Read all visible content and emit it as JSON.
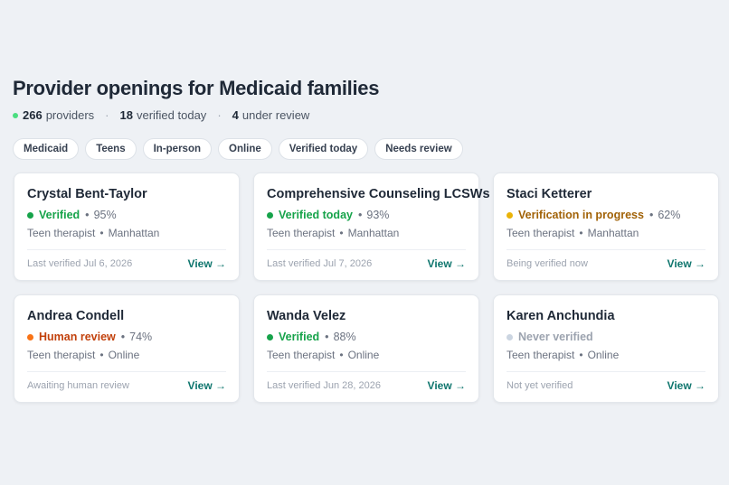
{
  "header": {
    "title": "Provider openings for Medicaid families",
    "stats": [
      {
        "value": "266",
        "label": "providers"
      },
      {
        "value": "18",
        "label": "verified today"
      },
      {
        "value": "4",
        "label": "under review"
      }
    ]
  },
  "filters": [
    "Medicaid",
    "Teens",
    "In-person",
    "Online",
    "Verified today",
    "Needs review"
  ],
  "cards": [
    {
      "name": "Crystal Bent-Taylor",
      "status": "Verified",
      "match": "95%",
      "detail": "Teen therapist",
      "location": "Manhattan",
      "footer": "Last verified Jul 6, 2026",
      "action": "View →"
    },
    {
      "name": "Comprehensive Counseling LCSWs",
      "status": "Verified today",
      "match": "93%",
      "detail": "Teen therapist",
      "location": "Manhattan",
      "footer": "Last verified Jul 7, 2026",
      "action": "View →"
    },
    {
      "name": "Staci Ketterer",
      "status": "Verification in progress",
      "match": "62%",
      "detail": "Teen therapist",
      "location": "Manhattan",
      "footer": "Being verified now",
      "action": "View →"
    },
    {
      "name": "Andrea Condell",
      "status": "Human review",
      "match": "74%",
      "detail": "Teen therapist",
      "location": "Online",
      "footer": "Awaiting human review",
      "action": "View →"
    },
    {
      "name": "Wanda Velez",
      "status": "Verified",
      "match": "88%",
      "detail": "Teen therapist",
      "location": "Online",
      "footer": "Last verified Jun 28, 2026",
      "action": "View →"
    },
    {
      "name": "Karen Anchundia",
      "status": "Never verified",
      "detail": "Teen therapist",
      "location": "Online",
      "footer": "Not yet verified",
      "action": "View →"
    }
  ]
}
